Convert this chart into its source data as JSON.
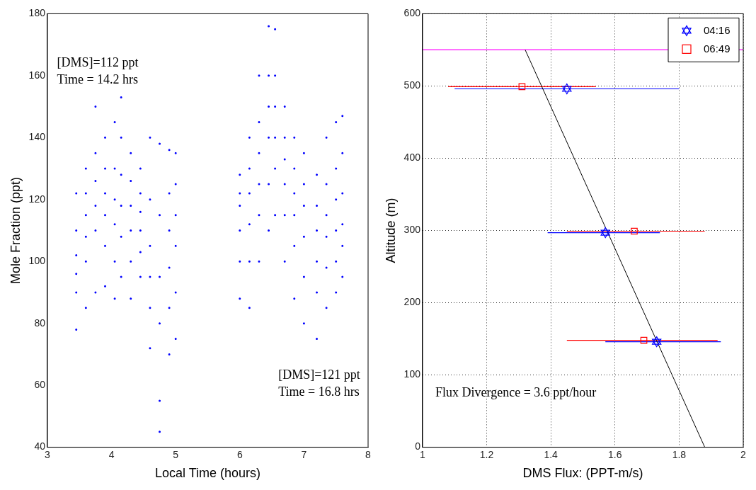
{
  "chart_data": [
    {
      "type": "scatter",
      "xlabel": "Local Time (hours)",
      "ylabel": "Mole Fraction (ppt)",
      "xlim": [
        3,
        8
      ],
      "ylim": [
        40,
        180
      ],
      "xticks": [
        3,
        4,
        5,
        6,
        7,
        8
      ],
      "yticks": [
        40,
        60,
        80,
        100,
        120,
        140,
        160,
        180
      ],
      "grid": false,
      "legend": false,
      "marker": "circle",
      "color": "#0000ff",
      "annotations": [
        "[DMS]=112 ppt\nTime = 14.2 hrs",
        "[DMS]=121 ppt\nTime = 16.8 hrs"
      ],
      "x": [
        3.45,
        3.45,
        3.45,
        3.45,
        3.45,
        3.45,
        3.6,
        3.6,
        3.6,
        3.6,
        3.6,
        3.6,
        3.75,
        3.75,
        3.75,
        3.75,
        3.75,
        3.75,
        3.9,
        3.9,
        3.9,
        3.9,
        3.9,
        3.9,
        4.05,
        4.05,
        4.05,
        4.05,
        4.05,
        4.05,
        4.15,
        4.15,
        4.15,
        4.15,
        4.15,
        4.15,
        4.3,
        4.3,
        4.3,
        4.3,
        4.3,
        4.3,
        4.45,
        4.45,
        4.45,
        4.45,
        4.45,
        4.45,
        4.6,
        4.6,
        4.6,
        4.6,
        4.6,
        4.6,
        4.75,
        4.75,
        4.75,
        4.75,
        4.75,
        4.75,
        4.9,
        4.9,
        4.9,
        4.9,
        4.9,
        4.9,
        5.0,
        5.0,
        5.0,
        5.0,
        5.0,
        5.0,
        6.0,
        6.0,
        6.0,
        6.0,
        6.0,
        6.0,
        6.15,
        6.15,
        6.15,
        6.15,
        6.15,
        6.15,
        6.3,
        6.3,
        6.3,
        6.3,
        6.3,
        6.3,
        6.45,
        6.45,
        6.45,
        6.45,
        6.45,
        6.45,
        6.55,
        6.55,
        6.55,
        6.55,
        6.55,
        6.55,
        6.7,
        6.7,
        6.7,
        6.7,
        6.7,
        6.7,
        6.85,
        6.85,
        6.85,
        6.85,
        6.85,
        6.85,
        7.0,
        7.0,
        7.0,
        7.0,
        7.0,
        7.0,
        7.2,
        7.2,
        7.2,
        7.2,
        7.2,
        7.2,
        7.35,
        7.35,
        7.35,
        7.35,
        7.35,
        7.35,
        7.5,
        7.5,
        7.5,
        7.5,
        7.5,
        7.5,
        7.6,
        7.6,
        7.6,
        7.6,
        7.6,
        7.6
      ],
      "values": [
        78,
        90,
        96,
        102,
        110,
        122,
        85,
        100,
        108,
        115,
        122,
        130,
        90,
        110,
        118,
        126,
        135,
        150,
        92,
        105,
        115,
        122,
        130,
        140,
        88,
        100,
        112,
        120,
        130,
        145,
        95,
        108,
        118,
        128,
        140,
        153,
        88,
        100,
        110,
        118,
        126,
        135,
        95,
        103,
        110,
        116,
        122,
        130,
        72,
        85,
        95,
        105,
        120,
        140,
        45,
        55,
        80,
        95,
        115,
        138,
        70,
        85,
        98,
        110,
        122,
        136,
        75,
        90,
        105,
        115,
        125,
        135,
        88,
        100,
        110,
        118,
        122,
        128,
        85,
        100,
        112,
        122,
        130,
        140,
        100,
        115,
        125,
        135,
        145,
        160,
        110,
        125,
        140,
        150,
        160,
        176,
        115,
        130,
        140,
        150,
        160,
        175,
        100,
        115,
        125,
        133,
        140,
        150,
        88,
        105,
        115,
        122,
        130,
        140,
        80,
        95,
        108,
        118,
        125,
        135,
        75,
        90,
        100,
        110,
        118,
        128,
        85,
        98,
        108,
        115,
        125,
        140,
        90,
        100,
        110,
        120,
        130,
        145,
        95,
        105,
        112,
        122,
        135,
        147
      ]
    },
    {
      "type": "scatter",
      "xlabel": "DMS Flux: (PPT-m/s)",
      "ylabel": "Altitude (m)",
      "xlim": [
        1,
        2
      ],
      "ylim": [
        0,
        600
      ],
      "xticks": [
        1,
        1.2,
        1.4,
        1.6,
        1.8,
        2
      ],
      "yticks": [
        0,
        100,
        200,
        300,
        400,
        500,
        600
      ],
      "grid": true,
      "legend": "top right",
      "annotations": [
        "Flux Divergence = 3.6 ppt/hour"
      ],
      "ref_lines": [
        {
          "axis": "y",
          "value": 550,
          "color": "#ff00ff"
        }
      ],
      "series": [
        {
          "name": "04:16",
          "color": "#0000ff",
          "marker": "star",
          "x": [
            1.45,
            1.57,
            1.73
          ],
          "values": [
            496,
            297,
            146
          ],
          "xerrors": [
            [
              1.1,
              1.8
            ],
            [
              1.39,
              1.74
            ],
            [
              1.57,
              1.93
            ]
          ]
        },
        {
          "name": "06:49",
          "color": "#ff0000",
          "marker": "square",
          "x": [
            1.31,
            1.66,
            1.69
          ],
          "values": [
            499,
            299,
            148
          ],
          "xerrors": [
            [
              1.08,
              1.54
            ],
            [
              1.45,
              1.88
            ],
            [
              1.45,
              1.92
            ]
          ]
        },
        {
          "type": "line",
          "color": "#000000",
          "marker": "none",
          "x": [
            1.32,
            1.88
          ],
          "values": [
            550,
            0
          ]
        }
      ]
    }
  ]
}
